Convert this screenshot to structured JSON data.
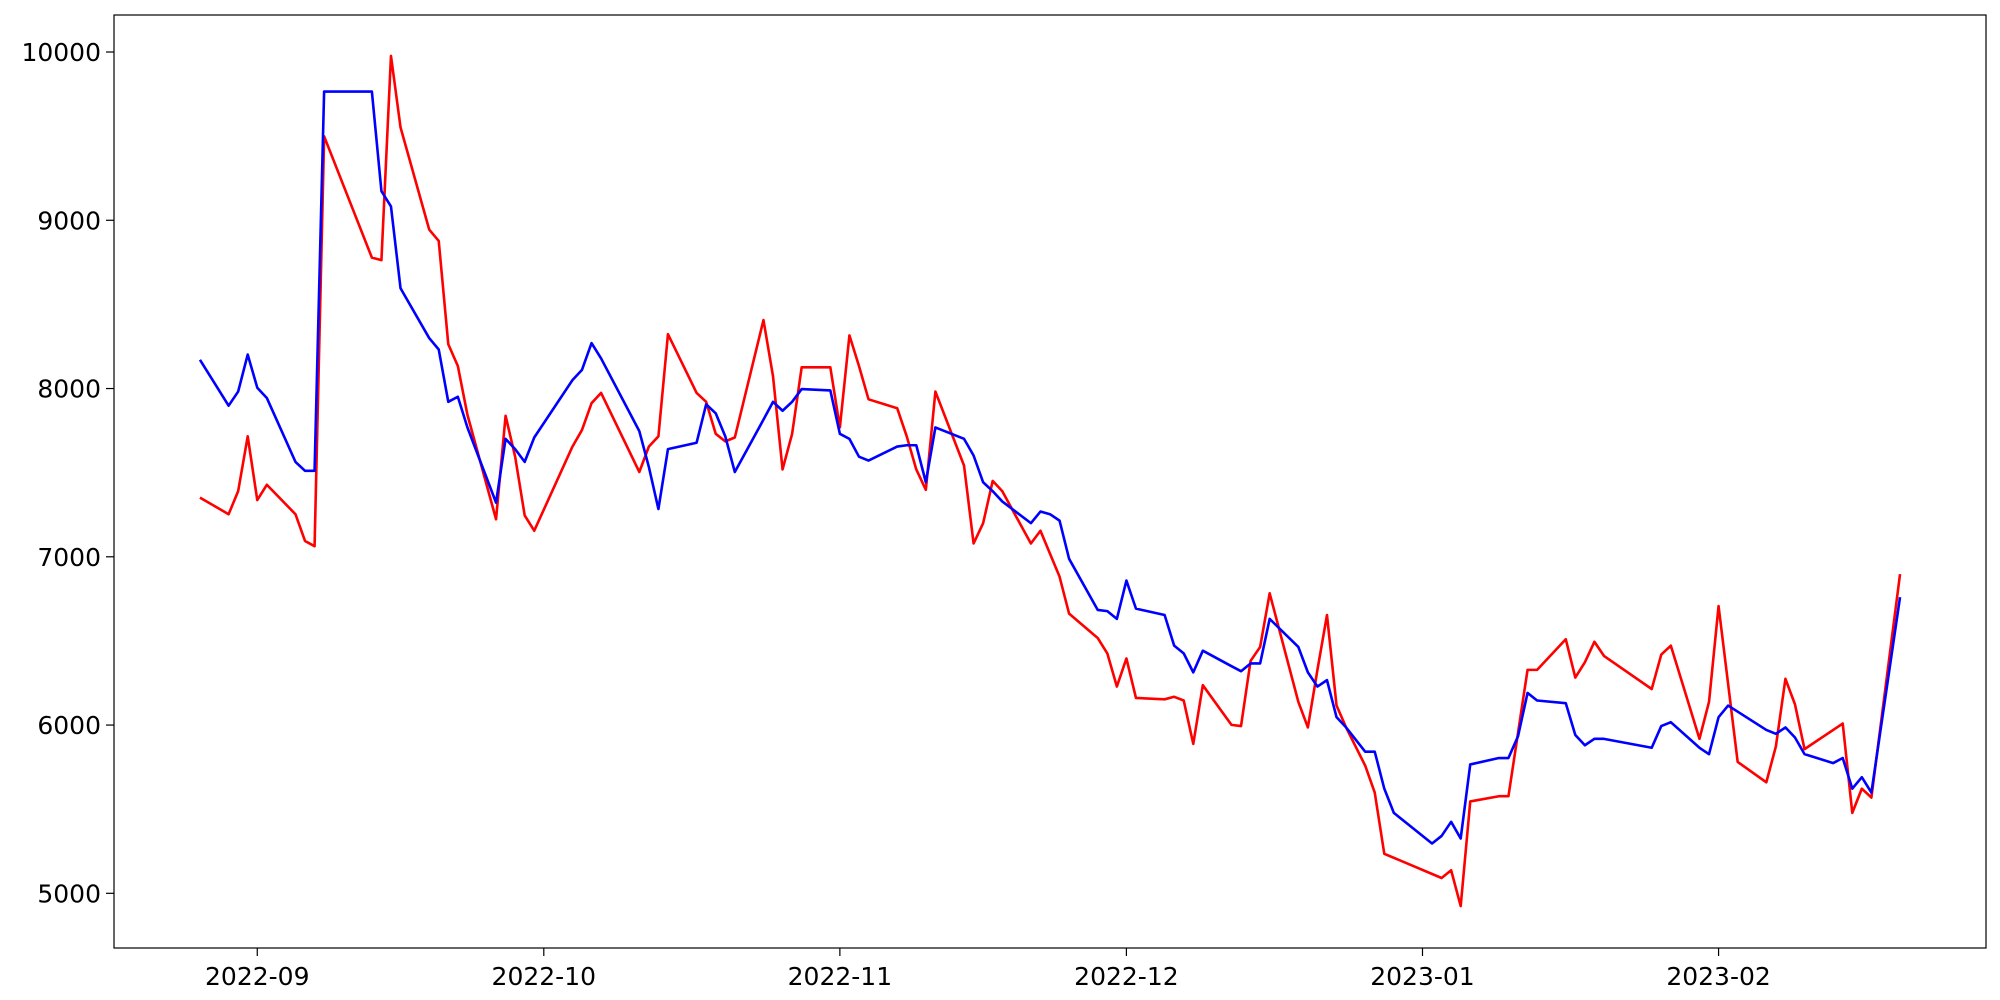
{
  "chart_data": {
    "type": "line",
    "xlim": [
      -15,
      181
    ],
    "xticks": [
      {
        "value": 0,
        "label": "2022-09"
      },
      {
        "value": 30,
        "label": "2022-10"
      },
      {
        "value": 61,
        "label": "2022-11"
      },
      {
        "value": 91,
        "label": "2022-12"
      },
      {
        "value": 122,
        "label": "2023-01"
      },
      {
        "value": 153,
        "label": "2023-02"
      }
    ],
    "ylim": [
      4675,
      10220
    ],
    "yticks": [
      5000,
      6000,
      7000,
      8000,
      9000,
      10000
    ],
    "grid": false,
    "series": [
      {
        "color": "#ff0000",
        "x": [
          -6,
          -3,
          -2,
          -1,
          0,
          1,
          4,
          5,
          6,
          7,
          12,
          13,
          14,
          15,
          18,
          19,
          20,
          21,
          22,
          25,
          26,
          27,
          28,
          29,
          33,
          34,
          35,
          36,
          40,
          41,
          42,
          43,
          46,
          47,
          48,
          49,
          50,
          53,
          54,
          55,
          56,
          57,
          60,
          61,
          62,
          63,
          64,
          67,
          68,
          69,
          70,
          71,
          74,
          75,
          76,
          77,
          78,
          81,
          82,
          84,
          85,
          88,
          89,
          90,
          91,
          92,
          95,
          96,
          97,
          98,
          99,
          102,
          103,
          104,
          105,
          106,
          109,
          110,
          111,
          112,
          113,
          114,
          116,
          117,
          118,
          124,
          125,
          126,
          127,
          130,
          131,
          133,
          134,
          137,
          138,
          139,
          140,
          141,
          146,
          147,
          148,
          151,
          152,
          153,
          155,
          158,
          159,
          160,
          161,
          162,
          166,
          167,
          168,
          169,
          172
        ],
        "values": [
          7352,
          7253,
          7390,
          7716,
          7337,
          7428,
          7253,
          7094,
          7063,
          9499,
          8778,
          8763,
          9977,
          9552,
          8945,
          8877,
          8263,
          8134,
          7845,
          7223,
          7838,
          7595,
          7246,
          7155,
          7655,
          7754,
          7913,
          7974,
          7504,
          7655,
          7716,
          8323,
          7974,
          7921,
          7731,
          7686,
          7709,
          8407,
          8073,
          7519,
          7731,
          8126,
          8126,
          7769,
          8316,
          8134,
          7936,
          7883,
          7716,
          7519,
          7398,
          7982,
          7542,
          7079,
          7200,
          7451,
          7390,
          7079,
          7155,
          6882,
          6662,
          6517,
          6426,
          6229,
          6396,
          6161,
          6153,
          6168,
          6146,
          5888,
          6237,
          6001,
          5994,
          6381,
          6464,
          6783,
          6138,
          5986,
          6328,
          6654,
          6116,
          5986,
          5759,
          5599,
          5235,
          5091,
          5137,
          4924,
          5546,
          5577,
          5577,
          6328,
          6328,
          6510,
          6282,
          6373,
          6495,
          6411,
          6214,
          6419,
          6472,
          5918,
          6138,
          6707,
          5781,
          5660,
          5873,
          6275,
          6123,
          5857,
          6009,
          5478,
          5622,
          5569,
          6897
        ]
      },
      {
        "color": "#0000ff",
        "x": [
          -6,
          -3,
          -2,
          -1,
          0,
          1,
          4,
          5,
          6,
          7,
          12,
          13,
          14,
          15,
          18,
          19,
          20,
          21,
          22,
          25,
          26,
          27,
          28,
          29,
          33,
          34,
          35,
          36,
          40,
          41,
          42,
          43,
          46,
          47,
          48,
          49,
          50,
          53,
          54,
          55,
          56,
          57,
          60,
          61,
          62,
          63,
          64,
          67,
          68,
          69,
          70,
          71,
          74,
          75,
          76,
          77,
          78,
          81,
          82,
          83,
          84,
          85,
          88,
          89,
          90,
          91,
          92,
          95,
          96,
          97,
          98,
          99,
          102,
          103,
          104,
          105,
          106,
          109,
          110,
          111,
          112,
          113,
          114,
          116,
          117,
          118,
          119,
          123,
          124,
          125,
          126,
          127,
          130,
          131,
          132,
          133,
          134,
          137,
          138,
          139,
          140,
          141,
          146,
          147,
          148,
          151,
          152,
          153,
          154,
          158,
          159,
          160,
          161,
          162,
          165,
          166,
          167,
          168,
          169,
          172
        ],
        "values": [
          8171,
          7898,
          7982,
          8202,
          8005,
          7944,
          7564,
          7511,
          7511,
          9765,
          9765,
          9173,
          9082,
          8596,
          8300,
          8232,
          7921,
          7951,
          7769,
          7322,
          7701,
          7640,
          7564,
          7709,
          8050,
          8111,
          8270,
          8179,
          7747,
          7534,
          7284,
          7640,
          7678,
          7906,
          7853,
          7716,
          7504,
          7815,
          7921,
          7868,
          7921,
          7997,
          7989,
          7731,
          7701,
          7595,
          7572,
          7655,
          7663,
          7663,
          7443,
          7769,
          7701,
          7602,
          7443,
          7390,
          7329,
          7200,
          7269,
          7253,
          7215,
          6988,
          6684,
          6677,
          6631,
          6859,
          6692,
          6654,
          6472,
          6426,
          6313,
          6442,
          6350,
          6320,
          6366,
          6366,
          6631,
          6464,
          6313,
          6229,
          6267,
          6047,
          5986,
          5842,
          5842,
          5622,
          5478,
          5296,
          5341,
          5425,
          5326,
          5766,
          5804,
          5804,
          5933,
          6191,
          6146,
          6130,
          5941,
          5880,
          5918,
          5918,
          5865,
          5994,
          6017,
          5865,
          5827,
          6047,
          6116,
          5971,
          5948,
          5986,
          5926,
          5827,
          5774,
          5804,
          5622,
          5690,
          5599,
          6760
        ]
      }
    ]
  }
}
